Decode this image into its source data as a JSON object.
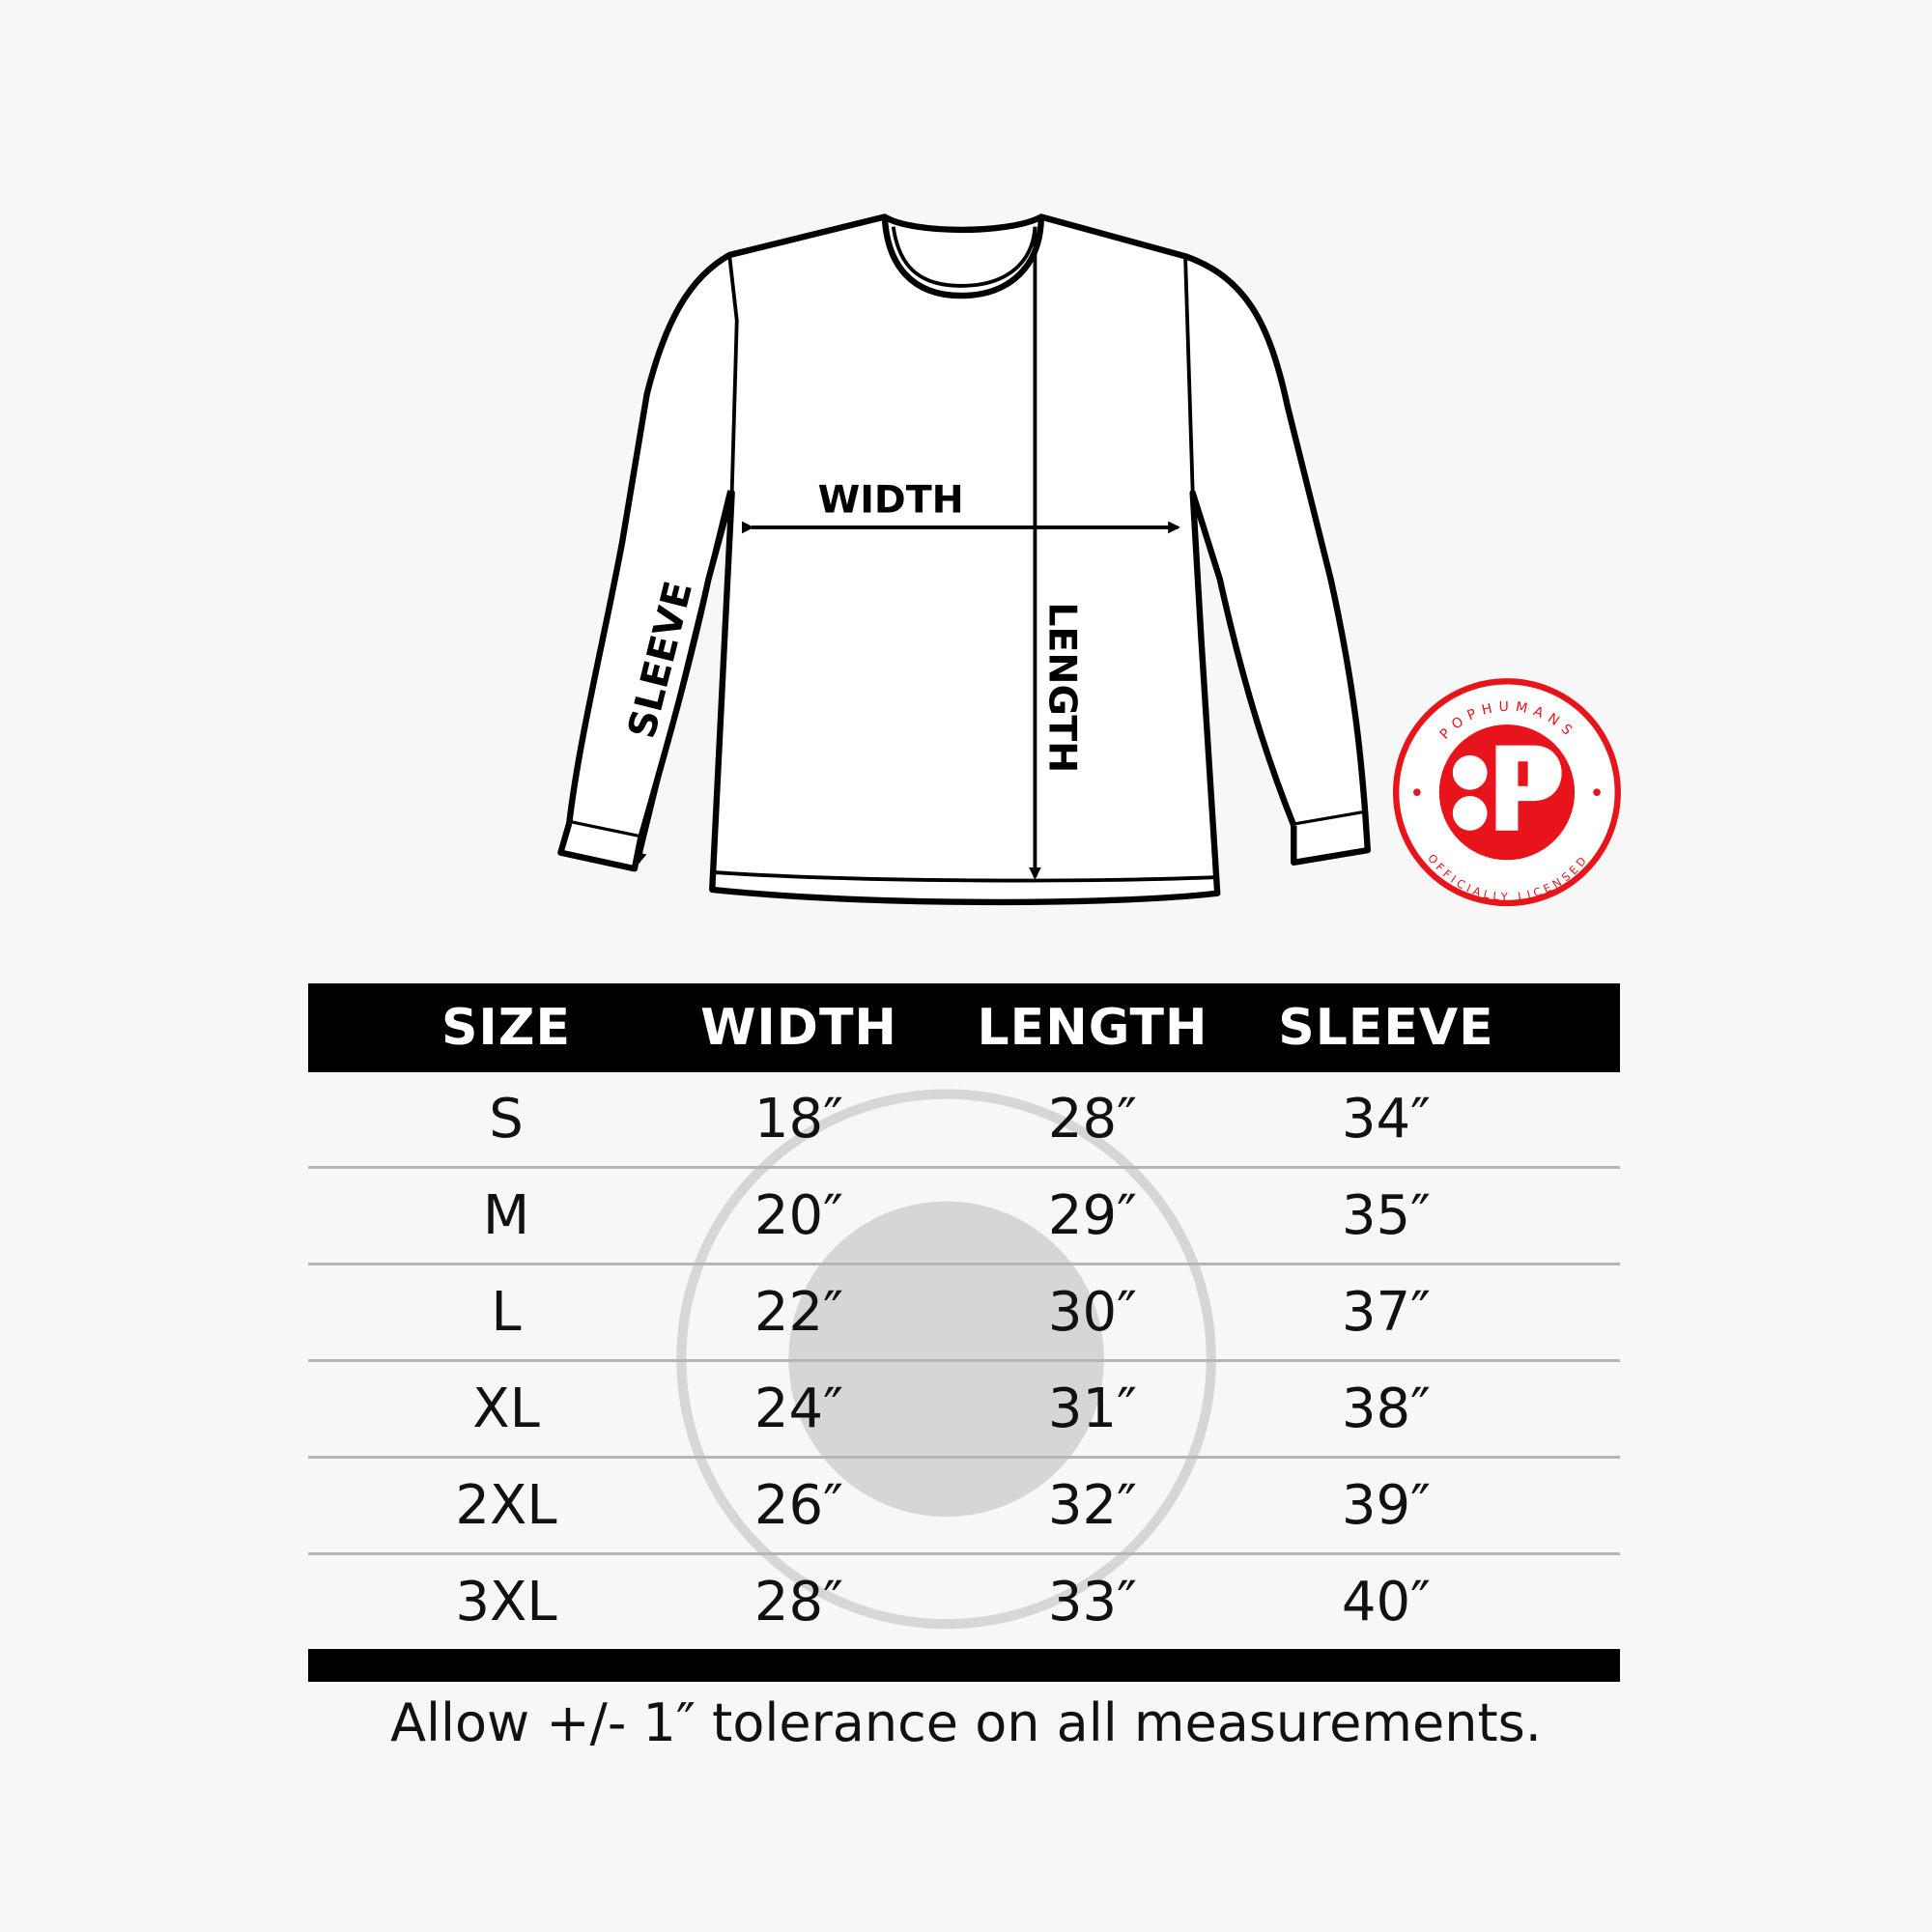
{
  "diagram": {
    "labels": {
      "width": "WIDTH",
      "length": "LENGTH",
      "sleeve": "SLEEVE"
    }
  },
  "badge": {
    "top_text": "POPHUMANS",
    "bottom_text": "OFFICIALLY LICENSED",
    "color": "#e8141c"
  },
  "table": {
    "headers": [
      "SIZE",
      "WIDTH",
      "LENGTH",
      "SLEEVE"
    ],
    "rows": [
      [
        "S",
        "18″",
        "28″",
        "34″"
      ],
      [
        "M",
        "20″",
        "29″",
        "35″"
      ],
      [
        "L",
        "22″",
        "30″",
        "37″"
      ],
      [
        "XL",
        "24″",
        "31″",
        "38″"
      ],
      [
        "2XL",
        "26″",
        "32″",
        "39″"
      ],
      [
        "3XL",
        "28″",
        "33″",
        "40″"
      ]
    ]
  },
  "footer": {
    "note": "Allow +/- 1″ tolerance on all measurements."
  }
}
